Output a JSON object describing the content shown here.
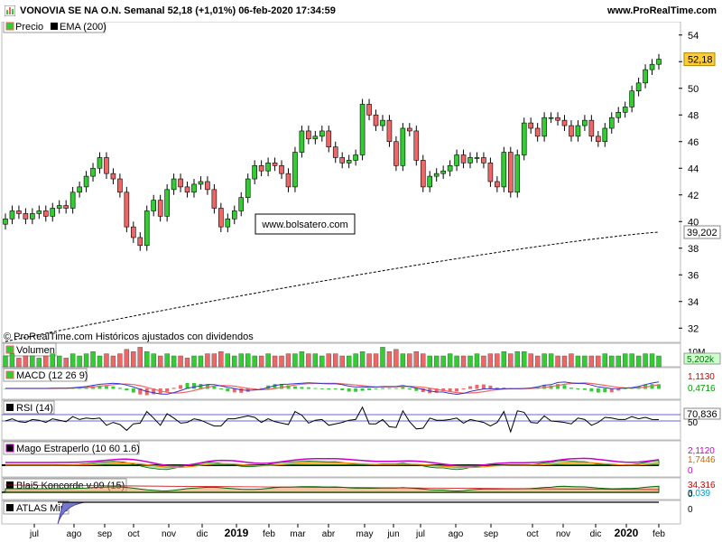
{
  "header": {
    "title": "VONOVIA SE NA O.N. Semanal 52,18 (+1,01%) 06-feb-2020 17:34:59",
    "site": "www.ProRealTime.com"
  },
  "colors": {
    "up": "#33cc33",
    "down": "#ee6666",
    "ema": "#000000",
    "volume_up": "#33cc33",
    "volume_down": "#ee6666",
    "last_price_bg": "#ffcc33"
  },
  "chart_data": [
    {
      "type": "candlestick",
      "panel": "price",
      "legend": [
        "Precio",
        "EMA (200)"
      ],
      "x_tick_labels": [
        "jul",
        "ago",
        "sep",
        "oct",
        "nov",
        "dic",
        "2019",
        "feb",
        "mar",
        "abr",
        "may",
        "jun",
        "jul",
        "ago",
        "sep",
        "oct",
        "nov",
        "dic",
        "2020",
        "feb"
      ],
      "y_ticks": [
        "54",
        "52",
        "50",
        "48",
        "46",
        "44",
        "42",
        "40",
        "38",
        "36",
        "34",
        "32"
      ],
      "ylim": [
        31,
        55
      ],
      "last_price_label": "52,18",
      "ema_label": "39,202",
      "watermark": "www.bolsatero.com",
      "footer": "© ProRealTime.com  Históricos ajustados con dividendos",
      "closes": [
        40.2,
        40.8,
        40.6,
        40.2,
        40.6,
        40.8,
        40.4,
        41.0,
        41.2,
        41.0,
        42.2,
        42.6,
        43.4,
        44.0,
        44.8,
        43.6,
        43.2,
        42.2,
        39.6,
        38.8,
        38.2,
        40.8,
        41.6,
        40.4,
        42.4,
        43.2,
        42.6,
        42.2,
        42.8,
        43.0,
        42.4,
        41.0,
        39.6,
        40.2,
        40.8,
        41.8,
        43.2,
        44.2,
        43.8,
        44.4,
        44.2,
        43.6,
        42.6,
        45.2,
        46.8,
        46.2,
        46.4,
        46.8,
        45.6,
        44.8,
        44.4,
        44.6,
        45.0,
        48.8,
        48.0,
        47.2,
        47.6,
        46.0,
        44.2,
        47.0,
        46.8,
        44.6,
        42.6,
        43.4,
        43.6,
        43.8,
        44.2,
        45.0,
        44.4,
        44.8,
        44.8,
        44.4,
        43.0,
        42.6,
        45.2,
        42.2,
        45.0,
        47.4,
        47.0,
        46.4,
        47.8,
        47.8,
        47.6,
        47.2,
        46.4,
        47.2,
        47.6,
        46.4,
        46.0,
        47.0,
        47.8,
        48.2,
        48.6,
        49.8,
        50.4,
        51.4,
        51.8,
        52.18
      ],
      "ema_start": 31.0,
      "ema_end": 39.202
    },
    {
      "type": "bar",
      "panel": "volume",
      "legend": "Volumen",
      "label_top": "10M",
      "label_value": "5,202k",
      "values": [
        5,
        6,
        4,
        5,
        5,
        4,
        5,
        6,
        5,
        4,
        6,
        5,
        6,
        7,
        5,
        6,
        5,
        6,
        8,
        7,
        9,
        7,
        6,
        5,
        6,
        5,
        5,
        4,
        5,
        5,
        6,
        6,
        7,
        6,
        5,
        6,
        6,
        5,
        5,
        6,
        5,
        5,
        6,
        6,
        7,
        6,
        6,
        5,
        6,
        6,
        5,
        5,
        6,
        7,
        6,
        6,
        9,
        7,
        8,
        6,
        6,
        7,
        6,
        5,
        5,
        5,
        6,
        5,
        5,
        5,
        6,
        5,
        6,
        6,
        7,
        6,
        7,
        7,
        6,
        5,
        6,
        6,
        5,
        5,
        6,
        5,
        5,
        5,
        5,
        6,
        5,
        5,
        6,
        6,
        5,
        6,
        6,
        5
      ]
    },
    {
      "type": "line",
      "panel": "indicator",
      "legend": "MACD (12 26 9)",
      "labels": [
        "1,1130",
        "0,4716"
      ]
    },
    {
      "type": "line",
      "panel": "indicator",
      "legend": "RSI (14)",
      "labels": [
        "70,836",
        "50"
      ]
    },
    {
      "type": "line",
      "panel": "indicator",
      "legend": "Mago Estraperlo (10 60 1.6)",
      "labels": [
        "2,1120",
        "1,7446",
        "0"
      ]
    },
    {
      "type": "line",
      "panel": "indicator",
      "legend": "Blai5 Koncorde v.09 (15)",
      "labels": [
        "34,316",
        "3,039",
        "0"
      ]
    },
    {
      "type": "line",
      "panel": "indicator",
      "legend": "ATLAS Mini",
      "labels": [
        "0"
      ]
    }
  ]
}
